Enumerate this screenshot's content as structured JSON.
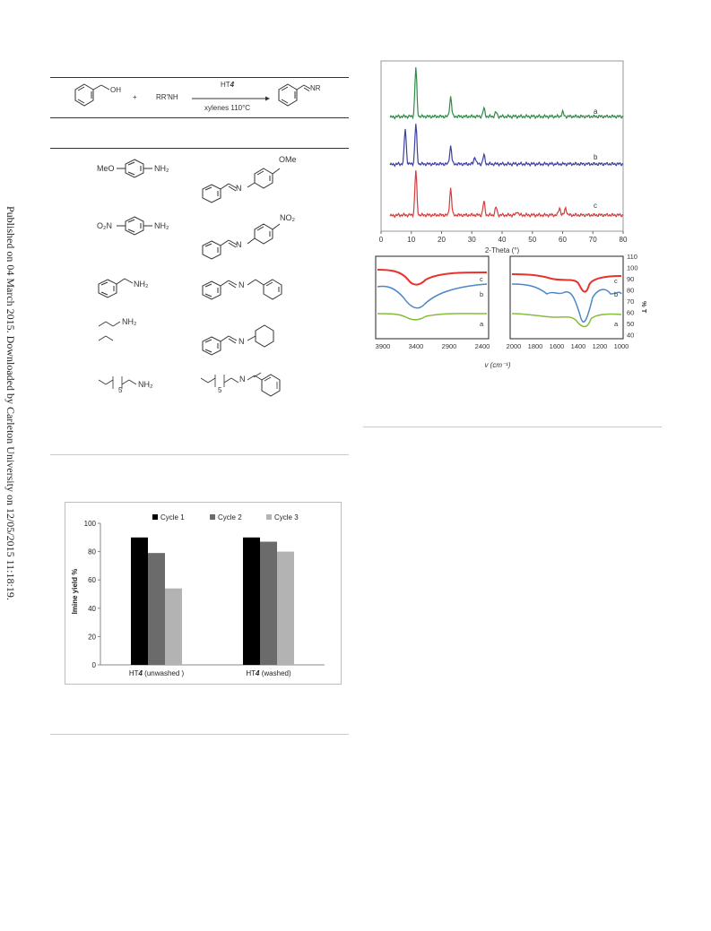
{
  "side_note": "Published on 04 March 2015. Downloaded by Carleton University on 12/05/2015 11:18:19.",
  "scheme": {
    "reactant_oh": "OH",
    "plus": "+",
    "amine": "RR'NH",
    "catalyst": "HT4",
    "catalyst_prefix": "HT",
    "catalyst_num": "4",
    "conditions": "xylenes 110°C",
    "product_r": "NR"
  },
  "table": {
    "rows": [
      {
        "amine_left": "MeO",
        "amine_right": "NH₂",
        "product_sub": "OMe"
      },
      {
        "amine_left": "O₂N",
        "amine_right": "NH₂",
        "product_sub": "NO₂"
      },
      {
        "amine_right": "NH₂",
        "product_sub": "N"
      },
      {
        "amine_right": "NH₂",
        "product_sub": "N"
      },
      {
        "amine_right": "NH₂",
        "amine_sub": "5",
        "product_sub": "N",
        "product_num": "5"
      }
    ],
    "n_label": "N"
  },
  "xrd": {
    "xlabel": "2-Theta (°)",
    "ticks": [
      "0",
      "10",
      "20",
      "30",
      "40",
      "50",
      "60",
      "70",
      "80"
    ],
    "curve_labels": [
      "a",
      "b",
      "c"
    ],
    "colors": {
      "a": "#2f8a45",
      "b": "#3b3f9e",
      "c": "#d63a3a"
    }
  },
  "ir": {
    "xlabel": "v (cm⁻¹)",
    "ylabel": "% T",
    "left_ticks": [
      "3900",
      "3400",
      "2900",
      "2400"
    ],
    "right_ticks": [
      "2000",
      "1800",
      "1600",
      "1400",
      "1200",
      "1000"
    ],
    "y_ticks": [
      "110",
      "100",
      "90",
      "80",
      "70",
      "60",
      "50",
      "40"
    ],
    "curve_labels": [
      "c",
      "b",
      "a"
    ],
    "colors": {
      "c": "#e8322c",
      "b": "#4a86c8",
      "a": "#86bc3c"
    }
  },
  "chart_data": {
    "type": "bar",
    "categories": [
      "HT4 (unwashed )",
      "HT4 (washed)"
    ],
    "series": [
      {
        "name": "Cycle 1",
        "values": [
          90,
          90
        ],
        "color": "#000000"
      },
      {
        "name": "Cycle 2",
        "values": [
          79,
          87
        ],
        "color": "#6b6b6b"
      },
      {
        "name": "Cycle 3",
        "values": [
          54,
          80
        ],
        "color": "#b3b3b3"
      }
    ],
    "ylabel": "Imine yield %",
    "ylim": [
      0,
      100
    ],
    "yticks": [
      0,
      20,
      40,
      60,
      80,
      100
    ],
    "legend": "top",
    "grid": false,
    "category_parts": [
      {
        "pre": "HT",
        "num": "4",
        "post": " (unwashed )"
      },
      {
        "pre": "HT",
        "num": "4",
        "post": " (washed)"
      }
    ]
  }
}
